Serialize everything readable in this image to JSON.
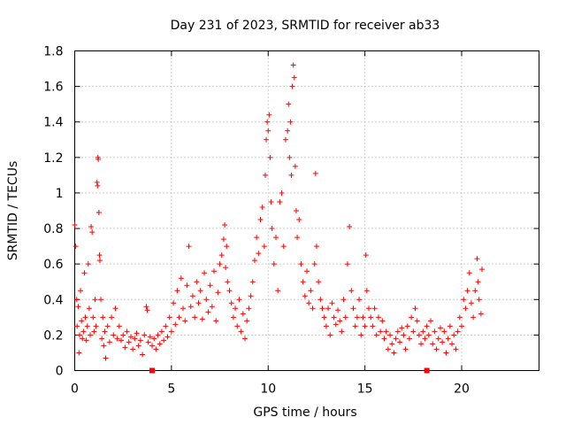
{
  "chart_data": {
    "type": "scatter",
    "title": "Day 231 of 2023, SRMTID for receiver ab33",
    "xlabel": "GPS time / hours",
    "ylabel": "SRMTID / TECUs",
    "xlim": [
      0,
      24
    ],
    "ylim": [
      0,
      1.8
    ],
    "xticks": [
      0,
      5,
      10,
      15,
      20
    ],
    "yticks": [
      0,
      0.2,
      0.4,
      0.6,
      0.8,
      1,
      1.2,
      1.4,
      1.6,
      1.8
    ],
    "ytick_labels": [
      "0",
      "0.2",
      "0.4",
      "0.6",
      "0.8",
      "1",
      "1.2",
      "1.4",
      "1.6",
      "1.8"
    ],
    "grid": true,
    "marker": "+",
    "color": "#ff0000",
    "series": [
      {
        "name": "SRMTID",
        "points": [
          [
            0.0,
            0.82
          ],
          [
            0.05,
            0.7
          ],
          [
            0.1,
            0.4
          ],
          [
            0.12,
            0.25
          ],
          [
            0.18,
            0.36
          ],
          [
            0.22,
            0.1
          ],
          [
            0.25,
            0.2
          ],
          [
            0.3,
            0.45
          ],
          [
            0.35,
            0.28
          ],
          [
            0.4,
            0.18
          ],
          [
            0.45,
            0.22
          ],
          [
            0.5,
            0.55
          ],
          [
            0.55,
            0.3
          ],
          [
            0.6,
            0.17
          ],
          [
            0.65,
            0.25
          ],
          [
            0.7,
            0.6
          ],
          [
            0.75,
            0.35
          ],
          [
            0.8,
            0.2
          ],
          [
            0.85,
            0.81
          ],
          [
            0.9,
            0.78
          ],
          [
            0.95,
            0.3
          ],
          [
            1.0,
            0.22
          ],
          [
            1.05,
            0.4
          ],
          [
            1.1,
            0.25
          ],
          [
            1.15,
            1.06
          ],
          [
            1.18,
            1.04
          ],
          [
            1.2,
            1.2
          ],
          [
            1.22,
            1.19
          ],
          [
            1.25,
            0.89
          ],
          [
            1.28,
            0.65
          ],
          [
            1.3,
            0.62
          ],
          [
            1.35,
            0.4
          ],
          [
            1.4,
            0.18
          ],
          [
            1.45,
            0.3
          ],
          [
            1.5,
            0.14
          ],
          [
            1.55,
            0.22
          ],
          [
            1.6,
            0.07
          ],
          [
            1.7,
            0.25
          ],
          [
            1.8,
            0.16
          ],
          [
            1.9,
            0.3
          ],
          [
            2.0,
            0.2
          ],
          [
            2.1,
            0.35
          ],
          [
            2.2,
            0.18
          ],
          [
            2.3,
            0.25
          ],
          [
            2.4,
            0.17
          ],
          [
            2.5,
            0.2
          ],
          [
            2.6,
            0.13
          ],
          [
            2.7,
            0.22
          ],
          [
            2.8,
            0.16
          ],
          [
            2.9,
            0.19
          ],
          [
            3.0,
            0.12
          ],
          [
            3.1,
            0.18
          ],
          [
            3.2,
            0.21
          ],
          [
            3.3,
            0.14
          ],
          [
            3.4,
            0.17
          ],
          [
            3.5,
            0.09
          ],
          [
            3.6,
            0.2
          ],
          [
            3.7,
            0.36
          ],
          [
            3.75,
            0.34
          ],
          [
            3.8,
            0.16
          ],
          [
            3.9,
            0.19
          ],
          [
            4.0,
            0.14
          ],
          [
            4.1,
            0.18
          ],
          [
            4.2,
            0.12
          ],
          [
            4.3,
            0.2
          ],
          [
            4.4,
            0.15
          ],
          [
            4.5,
            0.22
          ],
          [
            4.6,
            0.17
          ],
          [
            4.7,
            0.25
          ],
          [
            4.8,
            0.19
          ],
          [
            4.9,
            0.3
          ],
          [
            5.0,
            0.22
          ],
          [
            5.1,
            0.38
          ],
          [
            5.2,
            0.26
          ],
          [
            5.3,
            0.45
          ],
          [
            5.4,
            0.3
          ],
          [
            5.5,
            0.52
          ],
          [
            5.6,
            0.35
          ],
          [
            5.7,
            0.28
          ],
          [
            5.8,
            0.48
          ],
          [
            5.9,
            0.7
          ],
          [
            6.0,
            0.36
          ],
          [
            6.1,
            0.42
          ],
          [
            6.2,
            0.3
          ],
          [
            6.3,
            0.5
          ],
          [
            6.4,
            0.38
          ],
          [
            6.5,
            0.45
          ],
          [
            6.6,
            0.29
          ],
          [
            6.7,
            0.55
          ],
          [
            6.8,
            0.4
          ],
          [
            6.9,
            0.33
          ],
          [
            7.0,
            0.48
          ],
          [
            7.1,
            0.36
          ],
          [
            7.2,
            0.56
          ],
          [
            7.3,
            0.28
          ],
          [
            7.4,
            0.44
          ],
          [
            7.5,
            0.6
          ],
          [
            7.6,
            0.65
          ],
          [
            7.7,
            0.74
          ],
          [
            7.75,
            0.82
          ],
          [
            7.8,
            0.58
          ],
          [
            7.85,
            0.7
          ],
          [
            7.9,
            0.5
          ],
          [
            8.0,
            0.45
          ],
          [
            8.1,
            0.38
          ],
          [
            8.2,
            0.3
          ],
          [
            8.3,
            0.35
          ],
          [
            8.4,
            0.25
          ],
          [
            8.5,
            0.4
          ],
          [
            8.6,
            0.22
          ],
          [
            8.7,
            0.32
          ],
          [
            8.8,
            0.18
          ],
          [
            8.9,
            0.28
          ],
          [
            9.0,
            0.35
          ],
          [
            9.1,
            0.42
          ],
          [
            9.2,
            0.5
          ],
          [
            9.3,
            0.62
          ],
          [
            9.4,
            0.75
          ],
          [
            9.5,
            0.66
          ],
          [
            9.6,
            0.85
          ],
          [
            9.7,
            0.92
          ],
          [
            9.8,
            0.7
          ],
          [
            9.85,
            1.1
          ],
          [
            9.9,
            1.3
          ],
          [
            9.95,
            1.4
          ],
          [
            10.0,
            1.35
          ],
          [
            10.05,
            1.44
          ],
          [
            10.1,
            1.2
          ],
          [
            10.15,
            0.95
          ],
          [
            10.2,
            0.8
          ],
          [
            10.3,
            0.6
          ],
          [
            10.4,
            0.75
          ],
          [
            10.5,
            0.45
          ],
          [
            10.6,
            0.95
          ],
          [
            10.7,
            1.0
          ],
          [
            10.8,
            0.7
          ],
          [
            10.9,
            1.3
          ],
          [
            11.0,
            1.35
          ],
          [
            11.05,
            1.5
          ],
          [
            11.1,
            1.2
          ],
          [
            11.15,
            1.4
          ],
          [
            11.2,
            1.1
          ],
          [
            11.25,
            1.6
          ],
          [
            11.3,
            1.72
          ],
          [
            11.35,
            1.65
          ],
          [
            11.4,
            1.15
          ],
          [
            11.45,
            0.9
          ],
          [
            11.5,
            0.75
          ],
          [
            11.6,
            0.85
          ],
          [
            11.7,
            0.6
          ],
          [
            11.8,
            0.5
          ],
          [
            11.9,
            0.42
          ],
          [
            12.0,
            0.56
          ],
          [
            12.1,
            0.38
          ],
          [
            12.2,
            0.45
          ],
          [
            12.3,
            0.35
          ],
          [
            12.4,
            0.6
          ],
          [
            12.45,
            1.11
          ],
          [
            12.5,
            0.7
          ],
          [
            12.6,
            0.5
          ],
          [
            12.7,
            0.4
          ],
          [
            12.8,
            0.35
          ],
          [
            12.9,
            0.3
          ],
          [
            13.0,
            0.25
          ],
          [
            13.1,
            0.35
          ],
          [
            13.2,
            0.2
          ],
          [
            13.3,
            0.38
          ],
          [
            13.4,
            0.3
          ],
          [
            13.5,
            0.26
          ],
          [
            13.6,
            0.34
          ],
          [
            13.7,
            0.28
          ],
          [
            13.8,
            0.22
          ],
          [
            13.9,
            0.4
          ],
          [
            14.0,
            0.3
          ],
          [
            14.1,
            0.6
          ],
          [
            14.2,
            0.81
          ],
          [
            14.3,
            0.45
          ],
          [
            14.4,
            0.35
          ],
          [
            14.5,
            0.25
          ],
          [
            14.6,
            0.3
          ],
          [
            14.7,
            0.4
          ],
          [
            14.8,
            0.2
          ],
          [
            14.9,
            0.3
          ],
          [
            15.0,
            0.25
          ],
          [
            15.05,
            0.65
          ],
          [
            15.1,
            0.45
          ],
          [
            15.2,
            0.35
          ],
          [
            15.3,
            0.3
          ],
          [
            15.4,
            0.25
          ],
          [
            15.5,
            0.35
          ],
          [
            15.6,
            0.2
          ],
          [
            15.7,
            0.3
          ],
          [
            15.8,
            0.22
          ],
          [
            15.9,
            0.28
          ],
          [
            16.0,
            0.18
          ],
          [
            16.1,
            0.22
          ],
          [
            16.2,
            0.12
          ],
          [
            16.3,
            0.2
          ],
          [
            16.4,
            0.15
          ],
          [
            16.5,
            0.1
          ],
          [
            16.6,
            0.18
          ],
          [
            16.7,
            0.22
          ],
          [
            16.8,
            0.16
          ],
          [
            16.9,
            0.24
          ],
          [
            17.0,
            0.2
          ],
          [
            17.1,
            0.12
          ],
          [
            17.2,
            0.25
          ],
          [
            17.3,
            0.18
          ],
          [
            17.4,
            0.3
          ],
          [
            17.5,
            0.22
          ],
          [
            17.6,
            0.35
          ],
          [
            17.7,
            0.28
          ],
          [
            17.8,
            0.2
          ],
          [
            17.9,
            0.15
          ],
          [
            18.0,
            0.22
          ],
          [
            18.1,
            0.18
          ],
          [
            18.2,
            0.25
          ],
          [
            18.3,
            0.2
          ],
          [
            18.4,
            0.28
          ],
          [
            18.5,
            0.15
          ],
          [
            18.6,
            0.22
          ],
          [
            18.7,
            0.12
          ],
          [
            18.8,
            0.18
          ],
          [
            18.9,
            0.24
          ],
          [
            19.0,
            0.16
          ],
          [
            19.1,
            0.22
          ],
          [
            19.2,
            0.1
          ],
          [
            19.3,
            0.18
          ],
          [
            19.4,
            0.25
          ],
          [
            19.5,
            0.15
          ],
          [
            19.6,
            0.2
          ],
          [
            19.7,
            0.12
          ],
          [
            19.8,
            0.22
          ],
          [
            19.9,
            0.3
          ],
          [
            20.0,
            0.25
          ],
          [
            20.1,
            0.4
          ],
          [
            20.2,
            0.35
          ],
          [
            20.3,
            0.45
          ],
          [
            20.4,
            0.55
          ],
          [
            20.5,
            0.38
          ],
          [
            20.6,
            0.3
          ],
          [
            20.7,
            0.45
          ],
          [
            20.8,
            0.63
          ],
          [
            20.85,
            0.5
          ],
          [
            20.9,
            0.4
          ],
          [
            21.0,
            0.32
          ],
          [
            21.05,
            0.57
          ]
        ]
      }
    ],
    "zero_markers": [
      [
        4.0,
        0.0
      ],
      [
        18.2,
        0.0
      ]
    ]
  }
}
